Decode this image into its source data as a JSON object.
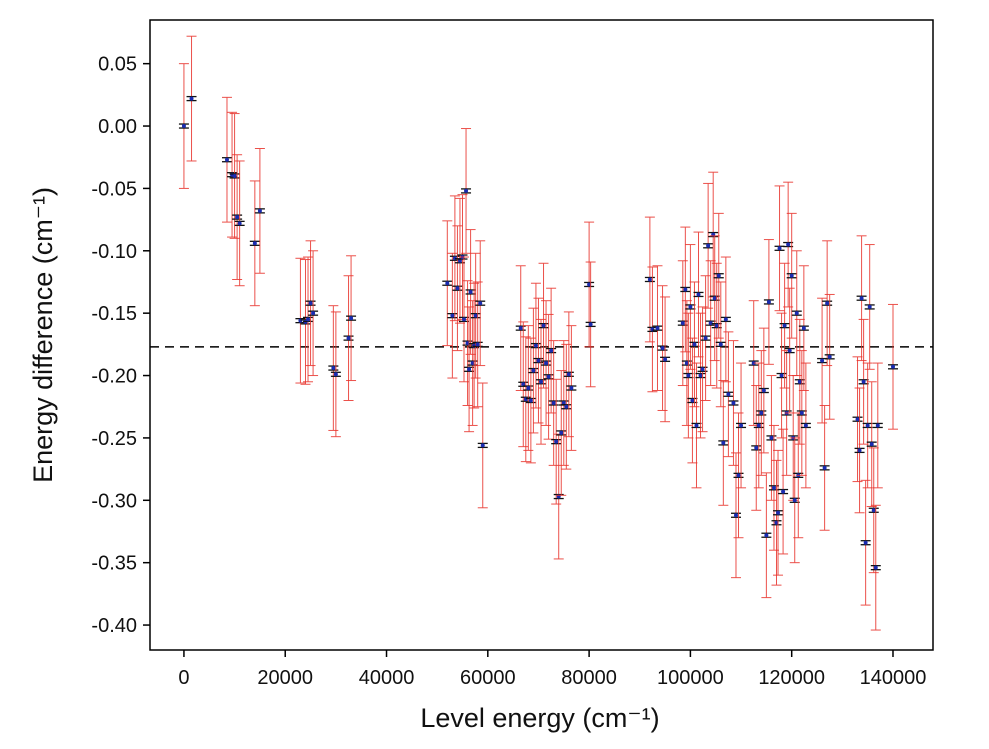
{
  "chart_data": {
    "type": "scatter",
    "xlabel": "Level energy (cm⁻¹)",
    "ylabel": "Energy difference (cm⁻¹)",
    "xlim": [
      -6700,
      147900
    ],
    "ylim": [
      -0.42,
      0.085
    ],
    "xticks": [
      0,
      20000,
      40000,
      60000,
      80000,
      100000,
      120000,
      140000
    ],
    "yticks": [
      0.05,
      {
        "value": 0,
        "label": "0.00"
      },
      -0.05,
      {
        "value": -0.1,
        "label": "-0.10"
      },
      -0.15,
      {
        "value": -0.2,
        "label": "-0.20"
      },
      -0.25,
      {
        "value": -0.3,
        "label": "-0.30"
      },
      -0.35,
      {
        "value": -0.4,
        "label": "-0.40"
      }
    ],
    "reference_line": -0.177,
    "series": [
      {
        "color": "#1a2bb0",
        "error_color": "#e8322b",
        "error": 0.05,
        "x": [
          0,
          1500,
          8500,
          9500,
          10000,
          10500,
          11000,
          14000,
          15000,
          23000,
          24000,
          24500,
          25000,
          25500,
          29500,
          30000,
          32500,
          33000,
          52000,
          53000,
          53500,
          54000,
          54500,
          55000,
          55300,
          55700,
          56000,
          56300,
          56600,
          57000,
          57300,
          57600,
          58000,
          58500,
          59000,
          66500,
          67000,
          67500,
          68000,
          68500,
          69000,
          69500,
          70000,
          70500,
          71000,
          71500,
          72000,
          72500,
          73000,
          73500,
          74000,
          74500,
          75000,
          75500,
          76000,
          76500,
          80000,
          80300,
          92000,
          92500,
          93500,
          94500,
          95000,
          98500,
          99000,
          99300,
          99600,
          100000,
          100400,
          100800,
          101200,
          101600,
          102000,
          102400,
          103000,
          103500,
          104000,
          104500,
          104800,
          105200,
          105600,
          106000,
          106500,
          107000,
          107500,
          108500,
          109000,
          109500,
          110000,
          112500,
          113000,
          113500,
          114000,
          114500,
          115000,
          115500,
          116000,
          116500,
          117000,
          117300,
          117600,
          118000,
          118300,
          118600,
          119000,
          119300,
          119600,
          120000,
          120300,
          120600,
          121000,
          121300,
          121600,
          122000,
          122400,
          122800,
          126000,
          126500,
          127000,
          127500,
          133000,
          133400,
          133800,
          134200,
          134600,
          135000,
          135400,
          135800,
          136200,
          136600,
          137000,
          140000
        ],
        "values": [
          0,
          0.022,
          -0.027,
          -0.039,
          -0.04,
          -0.073,
          -0.078,
          -0.094,
          -0.068,
          -0.156,
          -0.157,
          -0.155,
          -0.142,
          -0.15,
          -0.194,
          -0.199,
          -0.17,
          -0.154,
          -0.126,
          -0.152,
          -0.106,
          -0.13,
          -0.108,
          -0.105,
          -0.155,
          -0.052,
          -0.174,
          -0.195,
          -0.133,
          -0.19,
          -0.176,
          -0.152,
          -0.175,
          -0.142,
          -0.256,
          -0.162,
          -0.207,
          -0.219,
          -0.21,
          -0.22,
          -0.196,
          -0.176,
          -0.188,
          -0.205,
          -0.16,
          -0.19,
          -0.201,
          -0.18,
          -0.222,
          -0.253,
          -0.297,
          -0.246,
          -0.222,
          -0.225,
          -0.199,
          -0.21,
          -0.127,
          -0.159,
          -0.123,
          -0.163,
          -0.162,
          -0.178,
          -0.187,
          -0.158,
          -0.131,
          -0.19,
          -0.2,
          -0.145,
          -0.22,
          -0.175,
          -0.24,
          -0.135,
          -0.2,
          -0.195,
          -0.17,
          -0.096,
          -0.158,
          -0.087,
          -0.138,
          -0.16,
          -0.12,
          -0.175,
          -0.254,
          -0.155,
          -0.215,
          -0.222,
          -0.312,
          -0.28,
          -0.24,
          -0.19,
          -0.258,
          -0.24,
          -0.23,
          -0.212,
          -0.328,
          -0.141,
          -0.25,
          -0.29,
          -0.318,
          -0.31,
          -0.098,
          -0.2,
          -0.293,
          -0.16,
          -0.23,
          -0.095,
          -0.18,
          -0.12,
          -0.25,
          -0.3,
          -0.15,
          -0.28,
          -0.205,
          -0.23,
          -0.162,
          -0.24,
          -0.188,
          -0.274,
          -0.142,
          -0.185,
          -0.235,
          -0.26,
          -0.138,
          -0.205,
          -0.334,
          -0.24,
          -0.145,
          -0.255,
          -0.308,
          -0.354,
          -0.24,
          -0.193
        ]
      }
    ]
  }
}
